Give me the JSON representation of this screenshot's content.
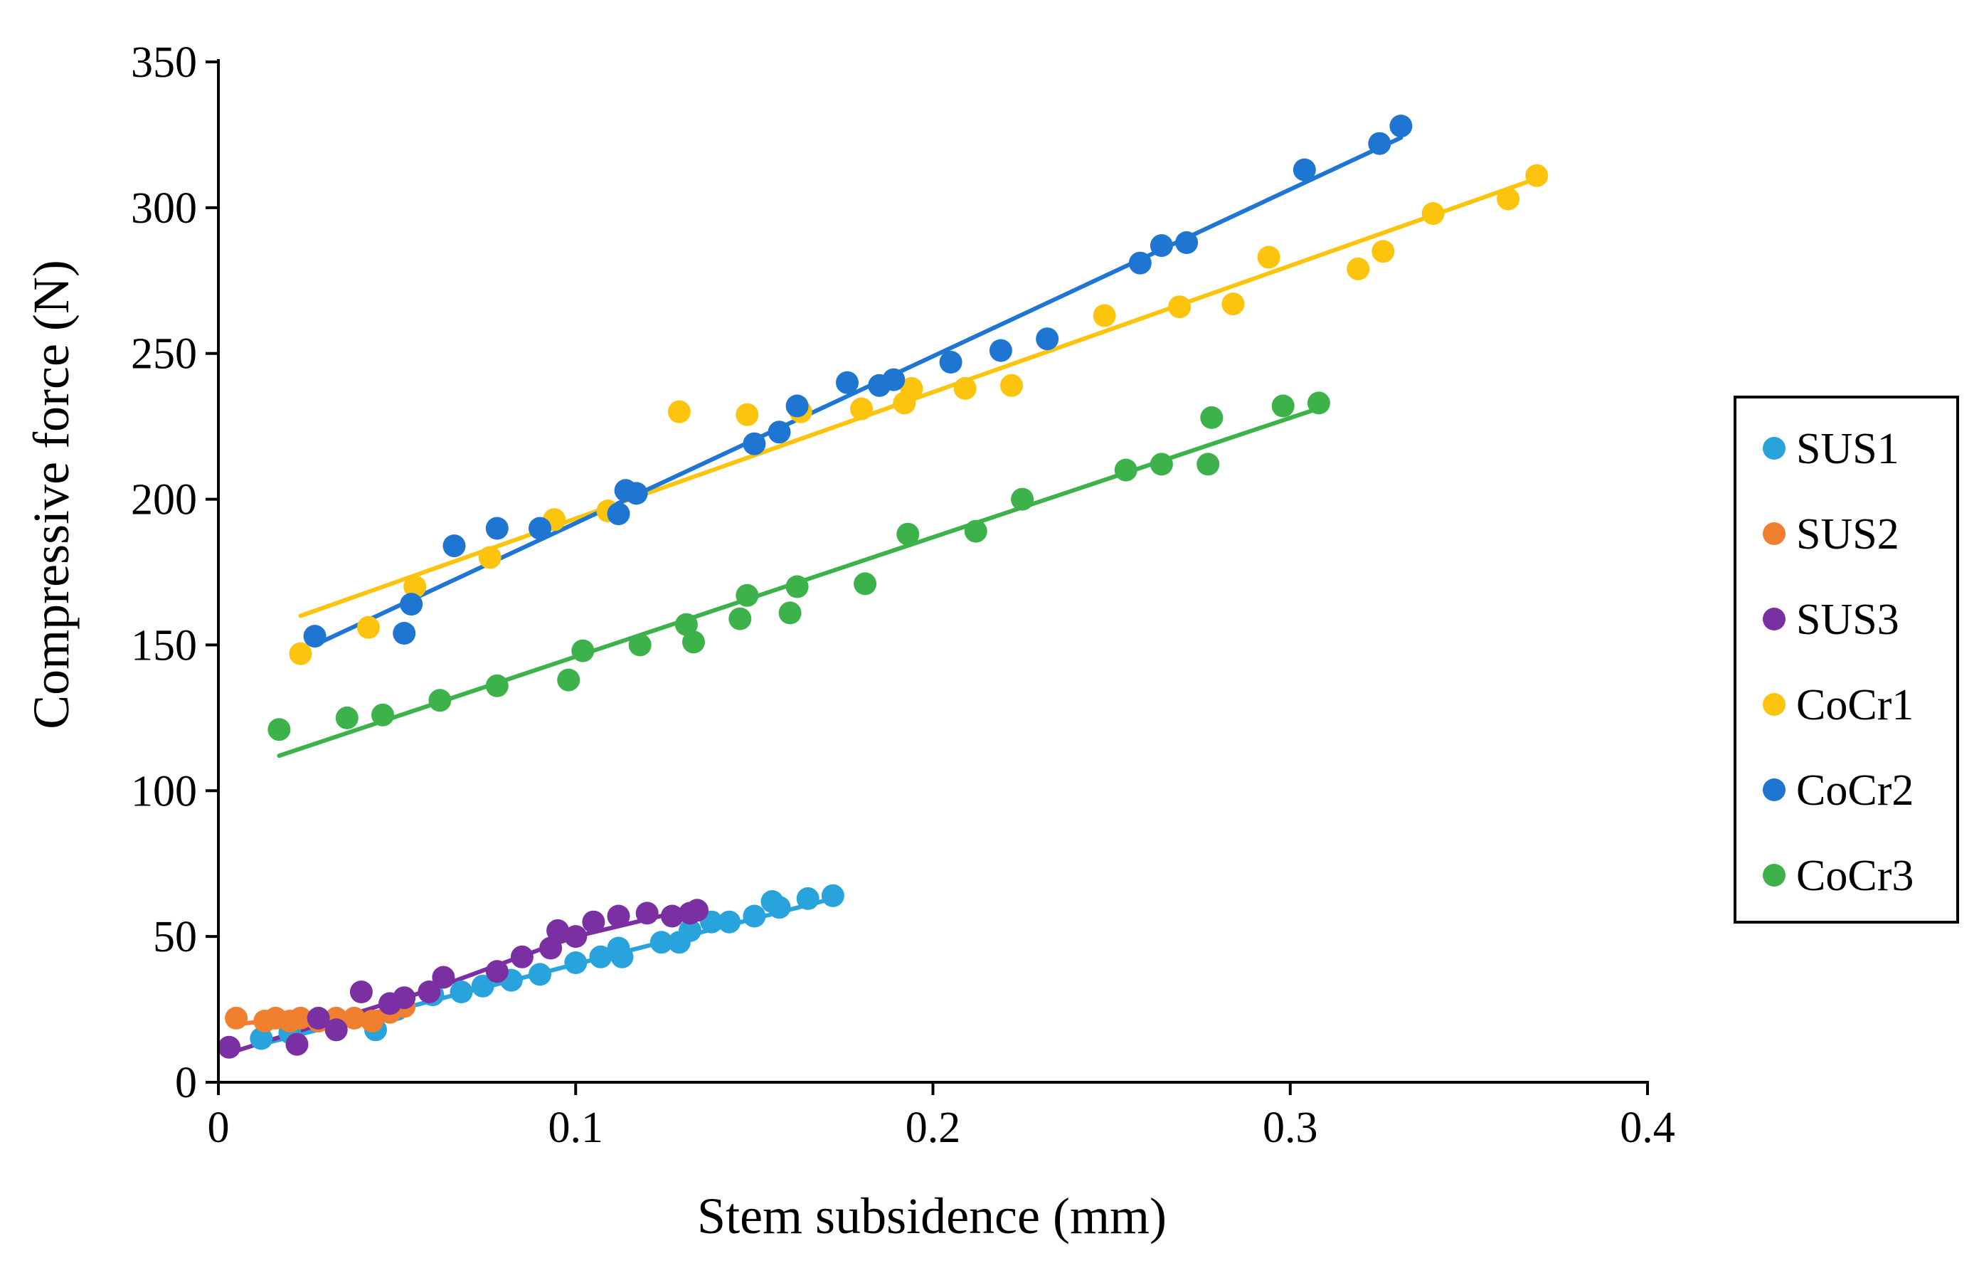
{
  "chart_data": {
    "type": "scatter",
    "title": "",
    "xlabel": "Stem subsidence (mm)",
    "ylabel": "Compressive force (N)",
    "xlim": [
      0,
      0.4
    ],
    "ylim": [
      0,
      350
    ],
    "x_ticks": [
      0,
      0.1,
      0.2,
      0.3,
      0.4
    ],
    "x_tick_labels": [
      "0",
      "0.1",
      "0.2",
      "0.3",
      "0.4"
    ],
    "y_ticks": [
      0,
      50,
      100,
      150,
      200,
      250,
      300,
      350
    ],
    "y_tick_labels": [
      "0",
      "50",
      "100",
      "150",
      "200",
      "250",
      "300",
      "350"
    ],
    "grid": false,
    "legend_position": "right",
    "series": [
      {
        "name": "SUS1",
        "color": "#29A3DB",
        "points": [
          [
            0.012,
            15
          ],
          [
            0.02,
            17
          ],
          [
            0.033,
            18
          ],
          [
            0.044,
            18
          ],
          [
            0.05,
            25
          ],
          [
            0.06,
            30
          ],
          [
            0.068,
            31
          ],
          [
            0.074,
            33
          ],
          [
            0.082,
            35
          ],
          [
            0.09,
            37
          ],
          [
            0.1,
            41
          ],
          [
            0.107,
            43
          ],
          [
            0.112,
            46
          ],
          [
            0.113,
            43
          ],
          [
            0.124,
            48
          ],
          [
            0.129,
            48
          ],
          [
            0.132,
            52
          ],
          [
            0.138,
            55
          ],
          [
            0.143,
            55
          ],
          [
            0.15,
            57
          ],
          [
            0.155,
            62
          ],
          [
            0.157,
            60
          ],
          [
            0.165,
            63
          ],
          [
            0.172,
            64
          ]
        ],
        "trend": [
          [
            0.012,
            13
          ],
          [
            0.172,
            63
          ]
        ]
      },
      {
        "name": "SUS2",
        "color": "#F08030",
        "points": [
          [
            0.005,
            22
          ],
          [
            0.013,
            21
          ],
          [
            0.016,
            22
          ],
          [
            0.02,
            21
          ],
          [
            0.023,
            22
          ],
          [
            0.028,
            21
          ],
          [
            0.033,
            22
          ],
          [
            0.038,
            22
          ],
          [
            0.043,
            21
          ],
          [
            0.048,
            24
          ],
          [
            0.052,
            26
          ]
        ],
        "trend": [
          [
            0.005,
            20
          ],
          [
            0.052,
            25
          ]
        ]
      },
      {
        "name": "SUS3",
        "color": "#7A2FA2",
        "points": [
          [
            0.003,
            12
          ],
          [
            0.022,
            13
          ],
          [
            0.028,
            22
          ],
          [
            0.033,
            18
          ],
          [
            0.04,
            31
          ],
          [
            0.048,
            27
          ],
          [
            0.052,
            29
          ],
          [
            0.059,
            31
          ],
          [
            0.063,
            36
          ],
          [
            0.078,
            38
          ],
          [
            0.085,
            43
          ],
          [
            0.093,
            46
          ],
          [
            0.095,
            52
          ],
          [
            0.1,
            50
          ],
          [
            0.105,
            55
          ],
          [
            0.112,
            57
          ],
          [
            0.12,
            58
          ],
          [
            0.127,
            57
          ],
          [
            0.132,
            58
          ],
          [
            0.134,
            59
          ]
        ],
        "trend": [
          [
            0.003,
            10
          ],
          [
            0.06,
            32
          ],
          [
            0.1,
            50
          ],
          [
            0.134,
            60
          ]
        ]
      },
      {
        "name": "CoCr1",
        "color": "#FCC40C",
        "points": [
          [
            0.023,
            147
          ],
          [
            0.042,
            156
          ],
          [
            0.055,
            170
          ],
          [
            0.076,
            180
          ],
          [
            0.094,
            193
          ],
          [
            0.109,
            196
          ],
          [
            0.129,
            230
          ],
          [
            0.148,
            229
          ],
          [
            0.163,
            230
          ],
          [
            0.18,
            231
          ],
          [
            0.192,
            233
          ],
          [
            0.194,
            238
          ],
          [
            0.209,
            238
          ],
          [
            0.222,
            239
          ],
          [
            0.248,
            263
          ],
          [
            0.269,
            266
          ],
          [
            0.284,
            267
          ],
          [
            0.294,
            283
          ],
          [
            0.319,
            279
          ],
          [
            0.326,
            285
          ],
          [
            0.34,
            298
          ],
          [
            0.361,
            303
          ],
          [
            0.369,
            311
          ]
        ],
        "trend": [
          [
            0.023,
            160
          ],
          [
            0.369,
            310
          ]
        ]
      },
      {
        "name": "CoCr2",
        "color": "#1F76D2",
        "points": [
          [
            0.027,
            153
          ],
          [
            0.052,
            154
          ],
          [
            0.054,
            164
          ],
          [
            0.066,
            184
          ],
          [
            0.078,
            190
          ],
          [
            0.09,
            190
          ],
          [
            0.112,
            195
          ],
          [
            0.114,
            203
          ],
          [
            0.117,
            202
          ],
          [
            0.15,
            219
          ],
          [
            0.157,
            223
          ],
          [
            0.162,
            232
          ],
          [
            0.176,
            240
          ],
          [
            0.185,
            239
          ],
          [
            0.189,
            241
          ],
          [
            0.205,
            247
          ],
          [
            0.219,
            251
          ],
          [
            0.232,
            255
          ],
          [
            0.258,
            281
          ],
          [
            0.264,
            287
          ],
          [
            0.271,
            288
          ],
          [
            0.304,
            313
          ],
          [
            0.325,
            322
          ],
          [
            0.331,
            328
          ]
        ],
        "trend": [
          [
            0.027,
            150
          ],
          [
            0.331,
            324
          ]
        ]
      },
      {
        "name": "CoCr3",
        "color": "#3DB24A",
        "points": [
          [
            0.017,
            121
          ],
          [
            0.036,
            125
          ],
          [
            0.046,
            126
          ],
          [
            0.062,
            131
          ],
          [
            0.078,
            136
          ],
          [
            0.098,
            138
          ],
          [
            0.102,
            148
          ],
          [
            0.118,
            150
          ],
          [
            0.131,
            157
          ],
          [
            0.133,
            151
          ],
          [
            0.146,
            159
          ],
          [
            0.148,
            167
          ],
          [
            0.16,
            161
          ],
          [
            0.162,
            170
          ],
          [
            0.181,
            171
          ],
          [
            0.193,
            188
          ],
          [
            0.212,
            189
          ],
          [
            0.225,
            200
          ],
          [
            0.254,
            210
          ],
          [
            0.264,
            212
          ],
          [
            0.277,
            212
          ],
          [
            0.278,
            228
          ],
          [
            0.298,
            232
          ],
          [
            0.308,
            233
          ]
        ],
        "trend": [
          [
            0.017,
            112
          ],
          [
            0.31,
            232
          ]
        ]
      }
    ]
  }
}
